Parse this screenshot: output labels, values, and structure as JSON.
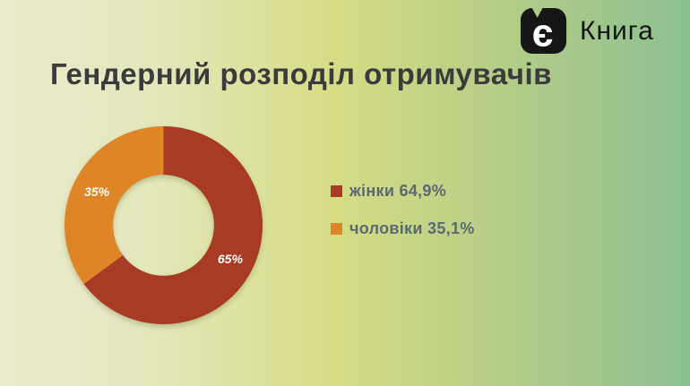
{
  "page": {
    "background_gradient": [
      "#EAECCB",
      "#E3E7BB",
      "#D7DD85",
      "#BBD086",
      "#8CC091"
    ]
  },
  "brand": {
    "icon_letter": "є",
    "name": "Книга",
    "icon_color": "#161616",
    "icon_letter_color": "#FFFFFF",
    "name_color": "#141414"
  },
  "chart_data": {
    "type": "pie",
    "subtype": "donut",
    "title": "Гендерний розподіл отримувачів",
    "title_color": "#3B3B3D",
    "legend_position": "right",
    "legend_text_color": "#5A6972",
    "start_angle_deg": 0,
    "direction": "clockwise",
    "inner_radius_ratio": 0.51,
    "slice_label_color": "#FFFFFF",
    "slices": [
      {
        "label": "жінки",
        "value": 64.9,
        "slice_label": "65%",
        "legend_label": "жінки 64,9%",
        "color": "#A73B23"
      },
      {
        "label": "чоловіки",
        "value": 35.1,
        "slice_label": "35%",
        "legend_label": "чоловіки 35,1%",
        "color": "#DE8627"
      }
    ]
  }
}
